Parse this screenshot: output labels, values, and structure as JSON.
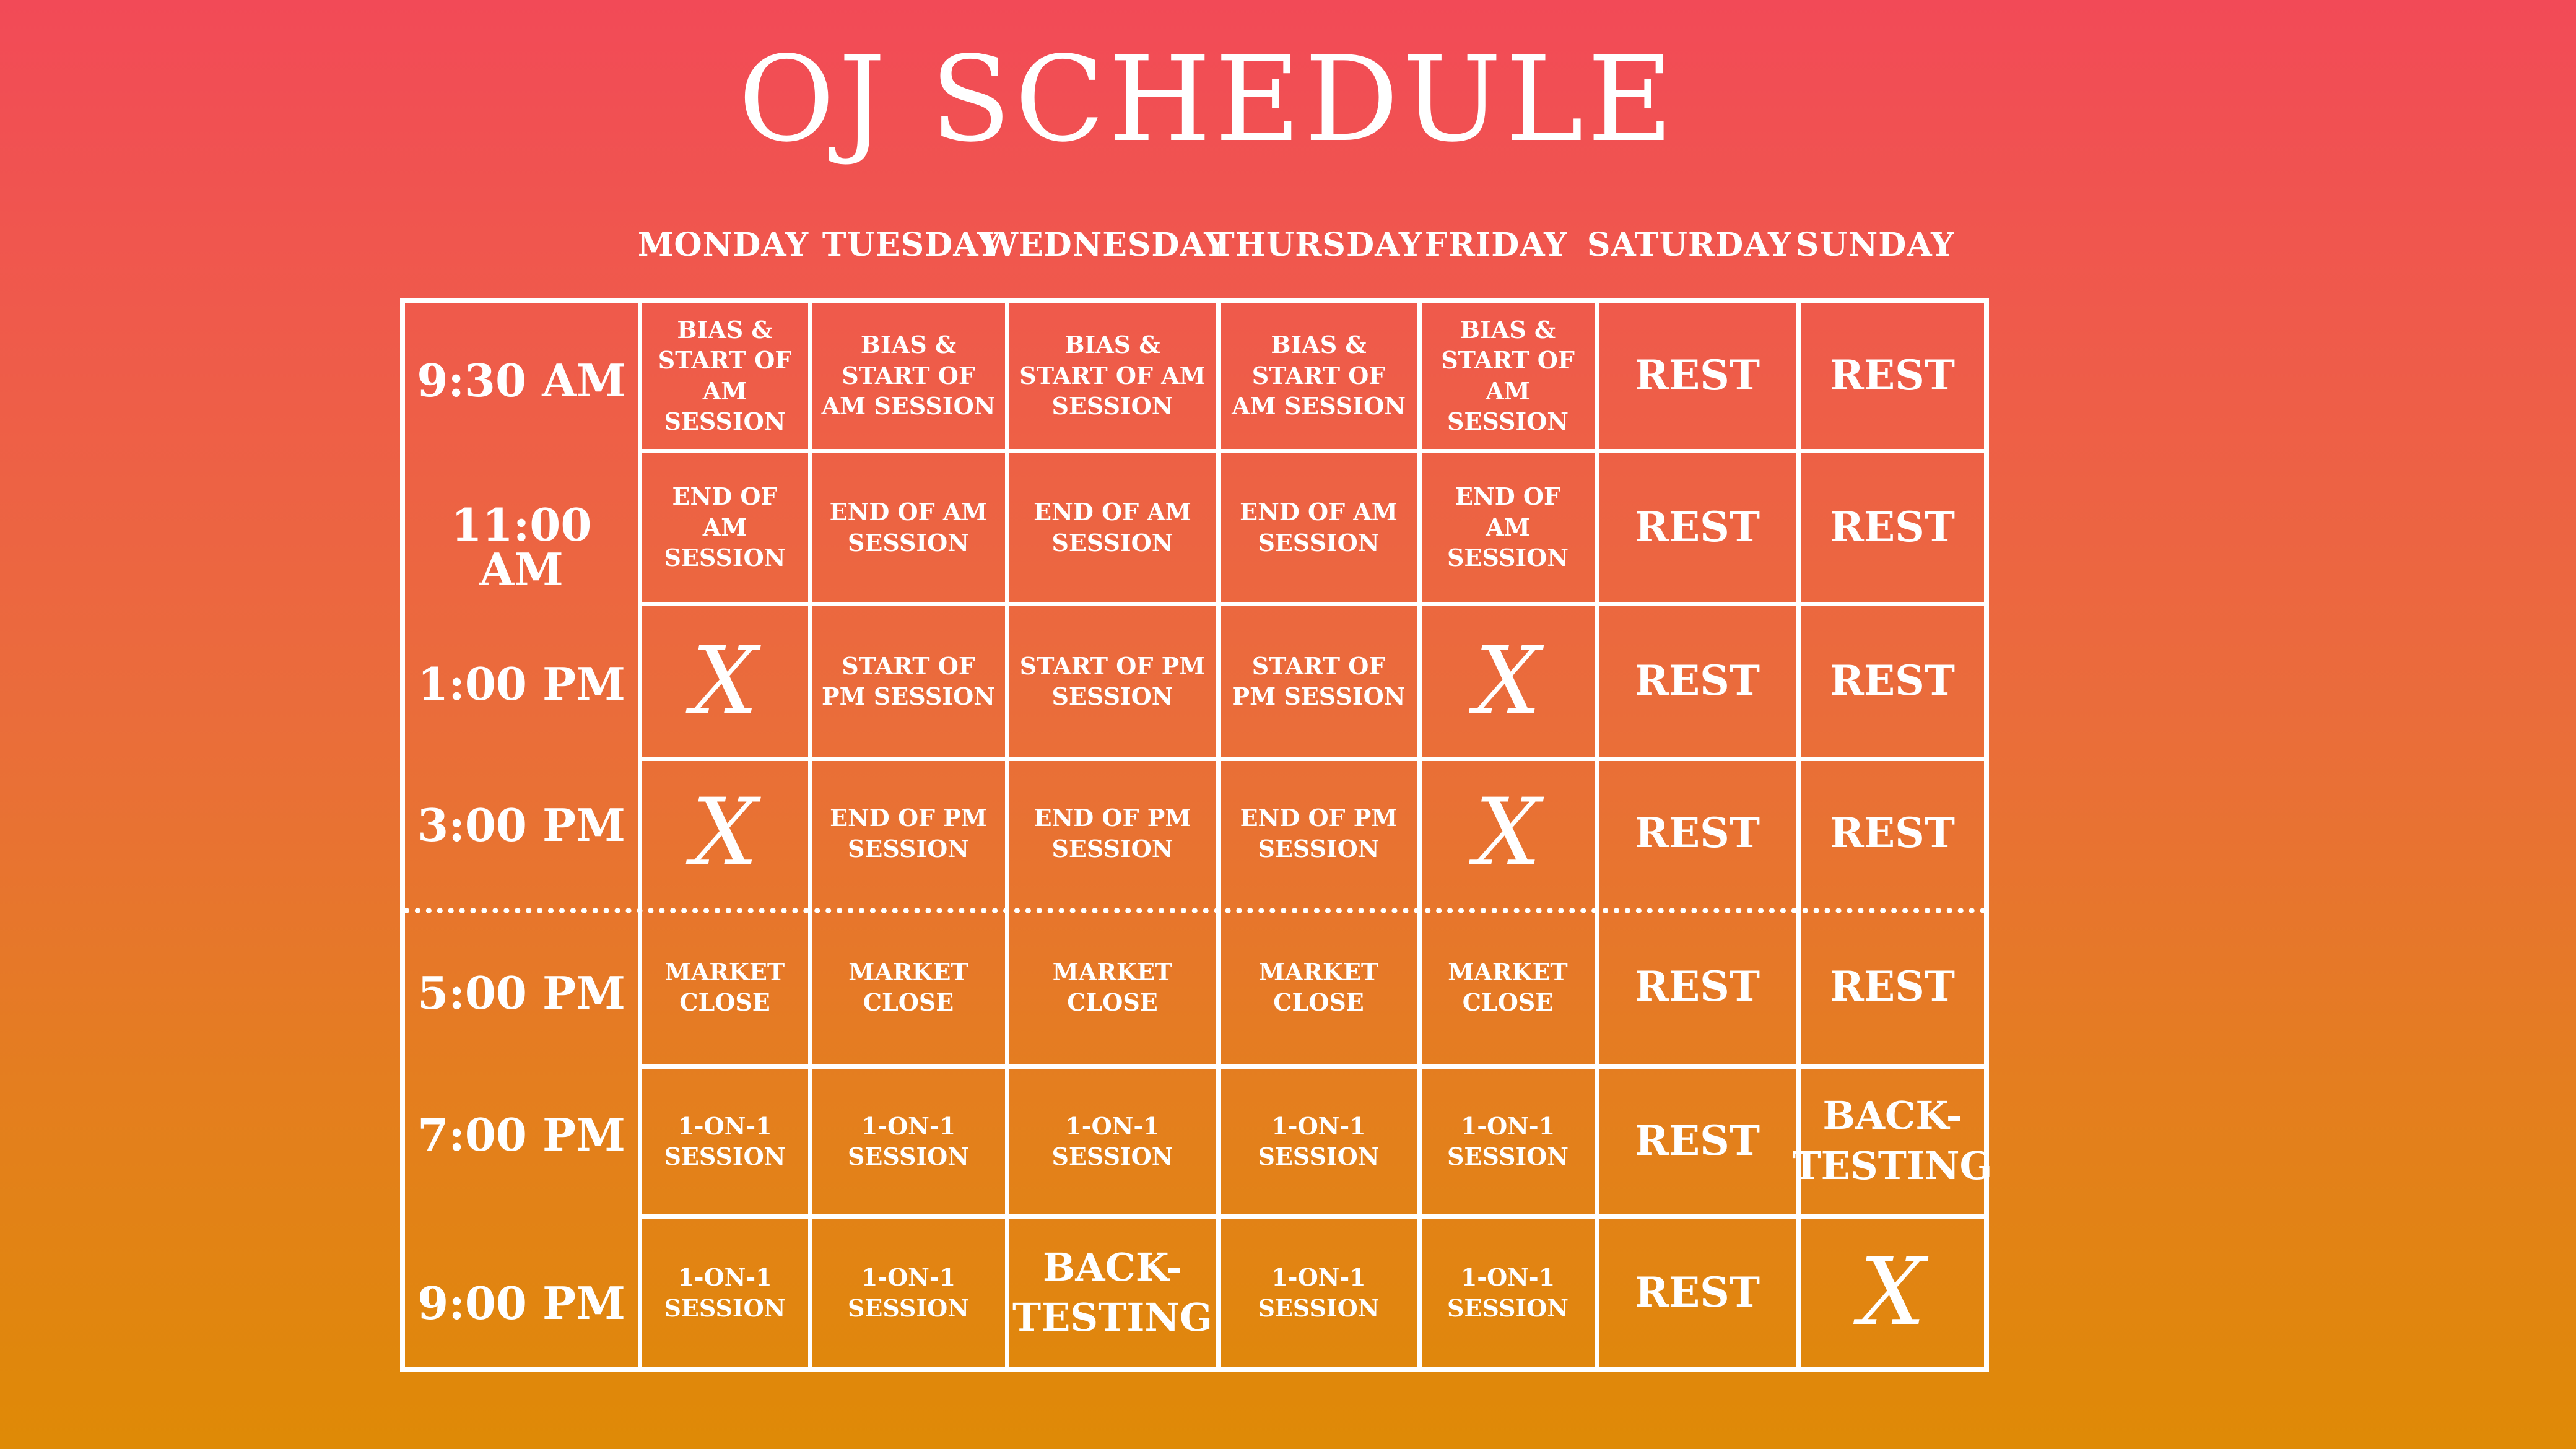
{
  "title": "OJ SCHEDULE",
  "days": [
    "MONDAY",
    "TUESDAY",
    "WEDNESDAY",
    "THURSDAY",
    "FRIDAY",
    "SATURDAY",
    "SUNDAY"
  ],
  "times": [
    "9:30 AM",
    "11:00 AM",
    "1:00 PM",
    "3:00 PM",
    "5:00 PM",
    "7:00 PM",
    "9:00 PM"
  ],
  "rows": [
    [
      "BIAS & START OF AM SESSION",
      "BIAS & START OF AM SESSION",
      "BIAS & START OF AM SESSION",
      "BIAS & START OF AM SESSION",
      "BIAS & START OF AM SESSION",
      "REST",
      "REST"
    ],
    [
      "END OF AM SESSION",
      "END OF AM SESSION",
      "END OF AM SESSION",
      "END OF AM SESSION",
      "END OF AM SESSION",
      "REST",
      "REST"
    ],
    [
      "X",
      "START OF PM SESSION",
      "START OF PM SESSION",
      "START OF PM SESSION",
      "X",
      "REST",
      "REST"
    ],
    [
      "X",
      "END OF PM SESSION",
      "END OF PM SESSION",
      "END OF PM SESSION",
      "X",
      "REST",
      "REST"
    ],
    [
      "MARKET CLOSE",
      "MARKET CLOSE",
      "MARKET CLOSE",
      "MARKET CLOSE",
      "MARKET CLOSE",
      "REST",
      "REST"
    ],
    [
      "1-ON-1 SESSION",
      "1-ON-1 SESSION",
      "1-ON-1 SESSION",
      "1-ON-1 SESSION",
      "1-ON-1 SESSION",
      "REST",
      "BACK-TESTING"
    ],
    [
      "1-ON-1 SESSION",
      "1-ON-1 SESSION",
      "BACK-TESTING",
      "1-ON-1 SESSION",
      "1-ON-1 SESSION",
      "REST",
      "X"
    ]
  ],
  "colors": {
    "gradient_top": "#f24a57",
    "gradient_bottom": "#df8a06",
    "grid": "#ffffff",
    "text": "#ffffff"
  }
}
